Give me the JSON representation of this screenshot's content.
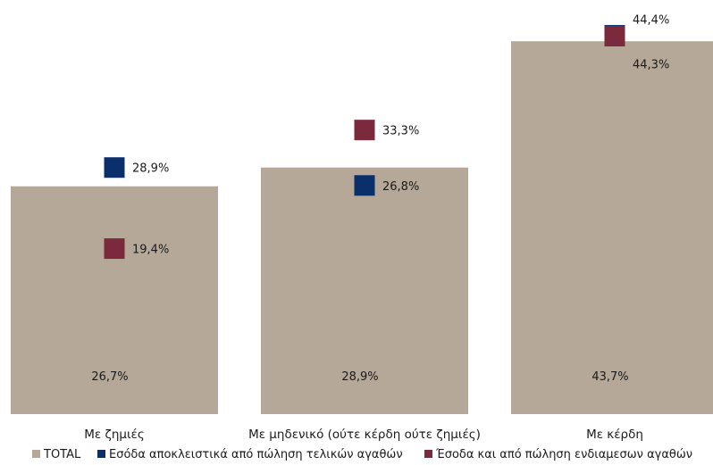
{
  "chart_data": {
    "type": "bar",
    "categories": [
      "Με ζημιές",
      "Με μηδενικό (ούτε κέρδη ούτε ζημιές)",
      "Με κέρδη"
    ],
    "ylim": [
      0,
      50
    ],
    "grid": false,
    "legend_position": "bottom",
    "series": [
      {
        "name": "TOTAL",
        "style": "bar",
        "color": "#b5a898",
        "values": [
          26.7,
          28.9,
          43.7
        ],
        "labels": [
          "26,7%",
          "28,9%",
          "43,7%"
        ]
      },
      {
        "name": "Εσόδα αποκλειστικά από πώληση τελικών αγαθών",
        "style": "marker",
        "color": "#0a2f6b",
        "values": [
          28.9,
          26.8,
          44.4
        ],
        "labels": [
          "28,9%",
          "26,8%",
          "44,4%"
        ]
      },
      {
        "name": "Έσοδα και από πώληση ενδιαμεσων αγαθών",
        "style": "marker",
        "color": "#7b2a3e",
        "values": [
          19.4,
          33.3,
          44.3
        ],
        "labels": [
          "19,4%",
          "33,3%",
          "44,3%"
        ]
      }
    ]
  }
}
